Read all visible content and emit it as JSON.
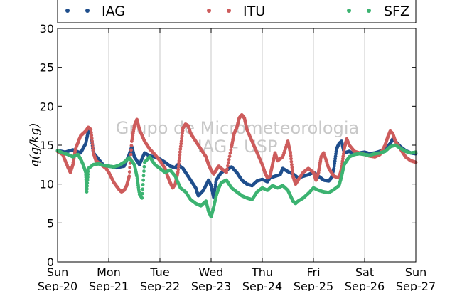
{
  "chart_data": {
    "type": "scatter",
    "title": "",
    "ylabel": "q(g/kg)",
    "xlabel": "",
    "ylim": [
      0,
      30
    ],
    "yticks": [
      0,
      5,
      10,
      15,
      20,
      25,
      30
    ],
    "xlim": [
      0,
      7
    ],
    "xticks": [
      {
        "x": 0,
        "day": "Sun",
        "date": "Sep-20"
      },
      {
        "x": 1,
        "day": "Mon",
        "date": "Sep-21"
      },
      {
        "x": 2,
        "day": "Tue",
        "date": "Sep-22"
      },
      {
        "x": 3,
        "day": "Wed",
        "date": "Sep-23"
      },
      {
        "x": 4,
        "day": "Thu",
        "date": "Sep-24"
      },
      {
        "x": 5,
        "day": "Fri",
        "date": "Sep-25"
      },
      {
        "x": 6,
        "day": "Sat",
        "date": "Sep-26"
      },
      {
        "x": 7,
        "day": "Sun",
        "date": "Sep-27"
      }
    ],
    "grid": "vertical",
    "legend_position": "top",
    "watermark": [
      "Grupo de Micrometeorologia",
      "IAG - USP"
    ],
    "series": [
      {
        "name": "IAG",
        "color": "#1f4e8c",
        "points": [
          [
            0,
            14.3
          ],
          [
            0.15,
            14.1
          ],
          [
            0.3,
            14.4
          ],
          [
            0.45,
            14.0
          ],
          [
            0.55,
            15.2
          ],
          [
            0.6,
            16.8
          ],
          [
            0.65,
            16.5
          ],
          [
            0.7,
            14.0
          ],
          [
            0.8,
            13.2
          ],
          [
            0.9,
            12.4
          ],
          [
            1.0,
            12.3
          ],
          [
            1.15,
            12.1
          ],
          [
            1.3,
            12.3
          ],
          [
            1.4,
            13.8
          ],
          [
            1.45,
            14.8
          ],
          [
            1.5,
            13.5
          ],
          [
            1.6,
            12.5
          ],
          [
            1.7,
            14.0
          ],
          [
            1.8,
            13.6
          ],
          [
            1.9,
            13.5
          ],
          [
            2.0,
            13.2
          ],
          [
            2.1,
            12.8
          ],
          [
            2.2,
            12.3
          ],
          [
            2.3,
            12.1
          ],
          [
            2.35,
            12.5
          ],
          [
            2.45,
            12.0
          ],
          [
            2.5,
            11.5
          ],
          [
            2.6,
            10.5
          ],
          [
            2.7,
            9.5
          ],
          [
            2.75,
            8.5
          ],
          [
            2.85,
            9.2
          ],
          [
            2.95,
            10.5
          ],
          [
            3.0,
            9.8
          ],
          [
            3.05,
            8.3
          ],
          [
            3.1,
            10.5
          ],
          [
            3.2,
            11.5
          ],
          [
            3.3,
            11.8
          ],
          [
            3.4,
            12.2
          ],
          [
            3.5,
            11.5
          ],
          [
            3.6,
            10.5
          ],
          [
            3.7,
            10.0
          ],
          [
            3.8,
            9.8
          ],
          [
            3.9,
            10.4
          ],
          [
            4.0,
            10.6
          ],
          [
            4.1,
            10.3
          ],
          [
            4.15,
            10.8
          ],
          [
            4.25,
            11.0
          ],
          [
            4.35,
            11.2
          ],
          [
            4.4,
            12.0
          ],
          [
            4.5,
            11.6
          ],
          [
            4.6,
            11.3
          ],
          [
            4.7,
            10.8
          ],
          [
            4.8,
            11.0
          ],
          [
            4.9,
            11.2
          ],
          [
            5.0,
            11.5
          ],
          [
            5.1,
            11.0
          ],
          [
            5.2,
            10.5
          ],
          [
            5.3,
            10.4
          ],
          [
            5.35,
            10.8
          ],
          [
            5.4,
            12.0
          ],
          [
            5.45,
            14.5
          ],
          [
            5.5,
            15.2
          ],
          [
            5.55,
            15.5
          ],
          [
            5.6,
            14.0
          ],
          [
            5.7,
            14.2
          ],
          [
            5.8,
            13.8
          ],
          [
            5.9,
            14.0
          ],
          [
            6.0,
            14.1
          ],
          [
            6.1,
            13.9
          ],
          [
            6.2,
            14.0
          ],
          [
            6.3,
            14.2
          ],
          [
            6.4,
            14.5
          ],
          [
            6.5,
            15.2
          ],
          [
            6.55,
            15.8
          ],
          [
            6.6,
            15.5
          ],
          [
            6.7,
            14.8
          ],
          [
            6.8,
            14.3
          ],
          [
            6.9,
            14.0
          ],
          [
            7.0,
            13.9
          ]
        ]
      },
      {
        "name": "ITU",
        "color": "#cd5c5c",
        "points": [
          [
            0,
            14.2
          ],
          [
            0.1,
            13.8
          ],
          [
            0.2,
            12.2
          ],
          [
            0.25,
            11.5
          ],
          [
            0.3,
            12.5
          ],
          [
            0.35,
            14.5
          ],
          [
            0.45,
            16.2
          ],
          [
            0.5,
            16.5
          ],
          [
            0.55,
            16.8
          ],
          [
            0.6,
            17.3
          ],
          [
            0.65,
            17.0
          ],
          [
            0.7,
            14.0
          ],
          [
            0.75,
            13.0
          ],
          [
            0.85,
            12.5
          ],
          [
            0.95,
            12.0
          ],
          [
            1.0,
            11.5
          ],
          [
            1.1,
            10.2
          ],
          [
            1.2,
            9.3
          ],
          [
            1.25,
            9.0
          ],
          [
            1.3,
            9.2
          ],
          [
            1.35,
            9.8
          ],
          [
            1.4,
            11.0
          ],
          [
            1.45,
            15.5
          ],
          [
            1.5,
            17.5
          ],
          [
            1.55,
            18.3
          ],
          [
            1.6,
            17.0
          ],
          [
            1.7,
            15.5
          ],
          [
            1.8,
            14.5
          ],
          [
            1.9,
            13.8
          ],
          [
            2.0,
            13.0
          ],
          [
            2.1,
            12.0
          ],
          [
            2.15,
            11.0
          ],
          [
            2.2,
            10.2
          ],
          [
            2.25,
            9.5
          ],
          [
            2.3,
            10.0
          ],
          [
            2.35,
            11.5
          ],
          [
            2.4,
            14.5
          ],
          [
            2.45,
            17.2
          ],
          [
            2.5,
            17.7
          ],
          [
            2.55,
            17.5
          ],
          [
            2.6,
            16.5
          ],
          [
            2.7,
            15.5
          ],
          [
            2.8,
            14.5
          ],
          [
            2.9,
            13.5
          ],
          [
            2.95,
            12.5
          ],
          [
            3.0,
            11.8
          ],
          [
            3.05,
            11.3
          ],
          [
            3.1,
            11.8
          ],
          [
            3.15,
            12.3
          ],
          [
            3.2,
            12.0
          ],
          [
            3.3,
            11.5
          ],
          [
            3.4,
            14.8
          ],
          [
            3.45,
            16.5
          ],
          [
            3.5,
            17.2
          ],
          [
            3.55,
            18.5
          ],
          [
            3.6,
            18.9
          ],
          [
            3.65,
            18.5
          ],
          [
            3.7,
            17.0
          ],
          [
            3.8,
            15.5
          ],
          [
            3.9,
            14.0
          ],
          [
            4.0,
            12.5
          ],
          [
            4.05,
            11.5
          ],
          [
            4.1,
            10.8
          ],
          [
            4.15,
            11.0
          ],
          [
            4.2,
            12.5
          ],
          [
            4.25,
            14.0
          ],
          [
            4.3,
            13.0
          ],
          [
            4.4,
            13.5
          ],
          [
            4.5,
            15.5
          ],
          [
            4.55,
            14.0
          ],
          [
            4.6,
            11.0
          ],
          [
            4.65,
            10.0
          ],
          [
            4.7,
            10.5
          ],
          [
            4.8,
            11.5
          ],
          [
            4.9,
            12.0
          ],
          [
            5.0,
            11.5
          ],
          [
            5.05,
            10.5
          ],
          [
            5.1,
            11.5
          ],
          [
            5.15,
            13.5
          ],
          [
            5.2,
            14.0
          ],
          [
            5.3,
            12.0
          ],
          [
            5.4,
            11.0
          ],
          [
            5.5,
            10.8
          ],
          [
            5.55,
            12.0
          ],
          [
            5.6,
            14.5
          ],
          [
            5.65,
            15.8
          ],
          [
            5.7,
            15.0
          ],
          [
            5.8,
            14.2
          ],
          [
            5.9,
            14.0
          ],
          [
            6.0,
            13.8
          ],
          [
            6.1,
            13.6
          ],
          [
            6.2,
            13.5
          ],
          [
            6.3,
            13.8
          ],
          [
            6.4,
            15.0
          ],
          [
            6.45,
            16.0
          ],
          [
            6.5,
            16.8
          ],
          [
            6.55,
            16.5
          ],
          [
            6.6,
            15.5
          ],
          [
            6.7,
            14.5
          ],
          [
            6.8,
            13.5
          ],
          [
            6.9,
            13.0
          ],
          [
            7.0,
            12.8
          ]
        ]
      },
      {
        "name": "SFZ",
        "color": "#3cb371",
        "points": [
          [
            0,
            14.3
          ],
          [
            0.1,
            14.0
          ],
          [
            0.2,
            13.8
          ],
          [
            0.3,
            13.5
          ],
          [
            0.4,
            13.8
          ],
          [
            0.45,
            13.2
          ],
          [
            0.5,
            12.5
          ],
          [
            0.55,
            11.5
          ],
          [
            0.57,
            9.0
          ],
          [
            0.6,
            12.0
          ],
          [
            0.7,
            12.5
          ],
          [
            0.8,
            12.6
          ],
          [
            0.9,
            12.4
          ],
          [
            1.0,
            12.3
          ],
          [
            1.1,
            12.2
          ],
          [
            1.2,
            12.4
          ],
          [
            1.3,
            12.8
          ],
          [
            1.4,
            13.4
          ],
          [
            1.5,
            12.5
          ],
          [
            1.55,
            11.0
          ],
          [
            1.6,
            8.7
          ],
          [
            1.65,
            8.2
          ],
          [
            1.7,
            12.8
          ],
          [
            1.8,
            13.5
          ],
          [
            1.9,
            12.5
          ],
          [
            2.0,
            12.0
          ],
          [
            2.1,
            11.5
          ],
          [
            2.2,
            11.8
          ],
          [
            2.3,
            11.0
          ],
          [
            2.4,
            9.5
          ],
          [
            2.5,
            9.0
          ],
          [
            2.6,
            8.0
          ],
          [
            2.7,
            7.5
          ],
          [
            2.8,
            7.2
          ],
          [
            2.9,
            7.8
          ],
          [
            2.95,
            6.5
          ],
          [
            3.0,
            5.8
          ],
          [
            3.05,
            7.0
          ],
          [
            3.1,
            8.5
          ],
          [
            3.15,
            9.5
          ],
          [
            3.2,
            10.2
          ],
          [
            3.3,
            10.5
          ],
          [
            3.4,
            9.5
          ],
          [
            3.5,
            9.0
          ],
          [
            3.6,
            8.5
          ],
          [
            3.7,
            8.2
          ],
          [
            3.8,
            8.0
          ],
          [
            3.9,
            9.0
          ],
          [
            4.0,
            9.5
          ],
          [
            4.1,
            9.2
          ],
          [
            4.2,
            9.8
          ],
          [
            4.3,
            9.5
          ],
          [
            4.4,
            9.8
          ],
          [
            4.5,
            9.2
          ],
          [
            4.55,
            8.5
          ],
          [
            4.6,
            7.8
          ],
          [
            4.65,
            7.5
          ],
          [
            4.7,
            7.8
          ],
          [
            4.8,
            8.2
          ],
          [
            4.9,
            8.8
          ],
          [
            5.0,
            9.5
          ],
          [
            5.1,
            9.2
          ],
          [
            5.2,
            9.0
          ],
          [
            5.3,
            8.9
          ],
          [
            5.4,
            9.3
          ],
          [
            5.5,
            9.8
          ],
          [
            5.55,
            11.0
          ],
          [
            5.6,
            12.5
          ],
          [
            5.65,
            13.0
          ],
          [
            5.7,
            13.5
          ],
          [
            5.8,
            13.8
          ],
          [
            5.9,
            13.9
          ],
          [
            6.0,
            13.8
          ],
          [
            6.1,
            13.7
          ],
          [
            6.2,
            13.9
          ],
          [
            6.3,
            14.0
          ],
          [
            6.4,
            14.2
          ],
          [
            6.5,
            14.8
          ],
          [
            6.6,
            15.0
          ],
          [
            6.7,
            14.6
          ],
          [
            6.8,
            14.2
          ],
          [
            6.9,
            14.0
          ],
          [
            7.0,
            14.1
          ]
        ]
      }
    ]
  }
}
